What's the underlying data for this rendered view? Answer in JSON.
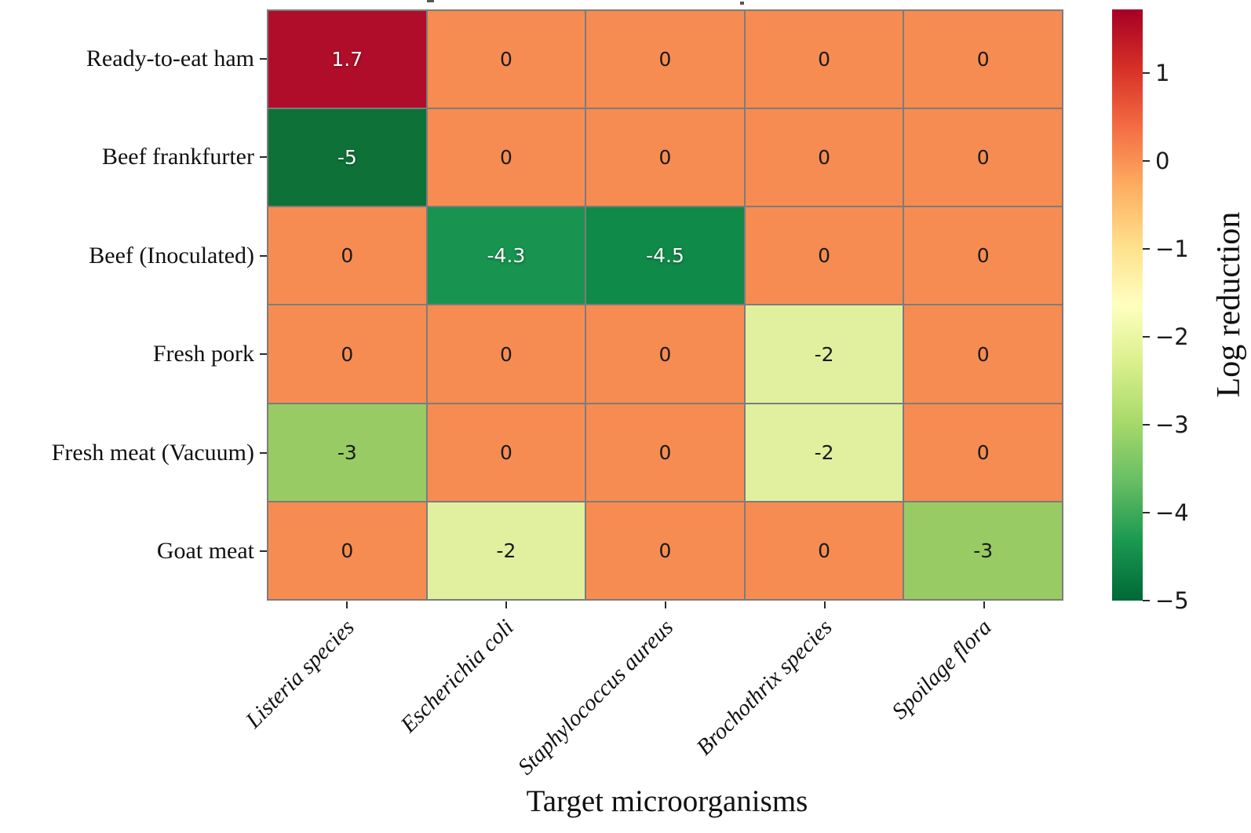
{
  "figure": {
    "xlabel": "Target microorganisms",
    "colorbar_label": "Log reduction"
  },
  "chart_data": {
    "type": "heatmap",
    "title": "",
    "xlabel": "Target microorganisms",
    "ylabel": "",
    "rows": [
      "Ready-to-eat ham",
      "Beef frankfurter",
      "Beef (Inoculated)",
      "Fresh pork",
      "Fresh meat (Vacuum)",
      "Goat meat"
    ],
    "columns": [
      "Listeria species",
      "Escherichia coli",
      "Staphylococcus aureus",
      "Brochothrix species",
      "Spoilage flora"
    ],
    "values": [
      [
        1.7,
        0,
        0,
        0,
        0
      ],
      [
        -5,
        0,
        0,
        0,
        0
      ],
      [
        0,
        -4.3,
        -4.5,
        0,
        0
      ],
      [
        0,
        0,
        0,
        -2,
        0
      ],
      [
        -3,
        0,
        0,
        -2,
        0
      ],
      [
        0,
        -2,
        0,
        0,
        -3
      ]
    ],
    "cell_labels": [
      [
        "1.7",
        "0",
        "0",
        "0",
        "0"
      ],
      [
        "-5",
        "0",
        "0",
        "0",
        "0"
      ],
      [
        "0",
        "-4.3",
        "-4.5",
        "0",
        "0"
      ],
      [
        "0",
        "0",
        "0",
        "-2",
        "0"
      ],
      [
        "-3",
        "0",
        "0",
        "-2",
        "0"
      ],
      [
        "0",
        "-2",
        "0",
        "0",
        "-3"
      ]
    ],
    "cell_colors": {
      "1.7": "#b00d2a",
      "0": "#f68c51",
      "-2": "#e1f09e",
      "-3": "#98cb64",
      "-4.3": "#189350",
      "-4.5": "#0f8a48",
      "-5": "#0e7138"
    },
    "cell_text_colors": {
      "1.7": "#ffffff",
      "0": "#1a1a1a",
      "-2": "#1a1a1a",
      "-3": "#1a1a1a",
      "-4.3": "#ffffff",
      "-4.5": "#ffffff",
      "-5": "#ffffff"
    },
    "grid_color": "#7c7c7c",
    "colorbar": {
      "label": "Log reduction",
      "vmin": -5,
      "vmax": 1.72,
      "ticks": [
        {
          "v": 1,
          "label": "1"
        },
        {
          "v": 0,
          "label": "0"
        },
        {
          "v": -1,
          "label": "−1"
        },
        {
          "v": -2,
          "label": "−2"
        },
        {
          "v": -3,
          "label": "−3"
        },
        {
          "v": -4,
          "label": "−4"
        },
        {
          "v": -5,
          "label": "−5"
        }
      ],
      "gradient": [
        "#a50026",
        "#d73027",
        "#f46d43",
        "#fdae61",
        "#fee08b",
        "#ffffbf",
        "#d9ef8b",
        "#a6d96a",
        "#66bd63",
        "#1a9850",
        "#006837"
      ],
      "legend_position": "right"
    }
  }
}
